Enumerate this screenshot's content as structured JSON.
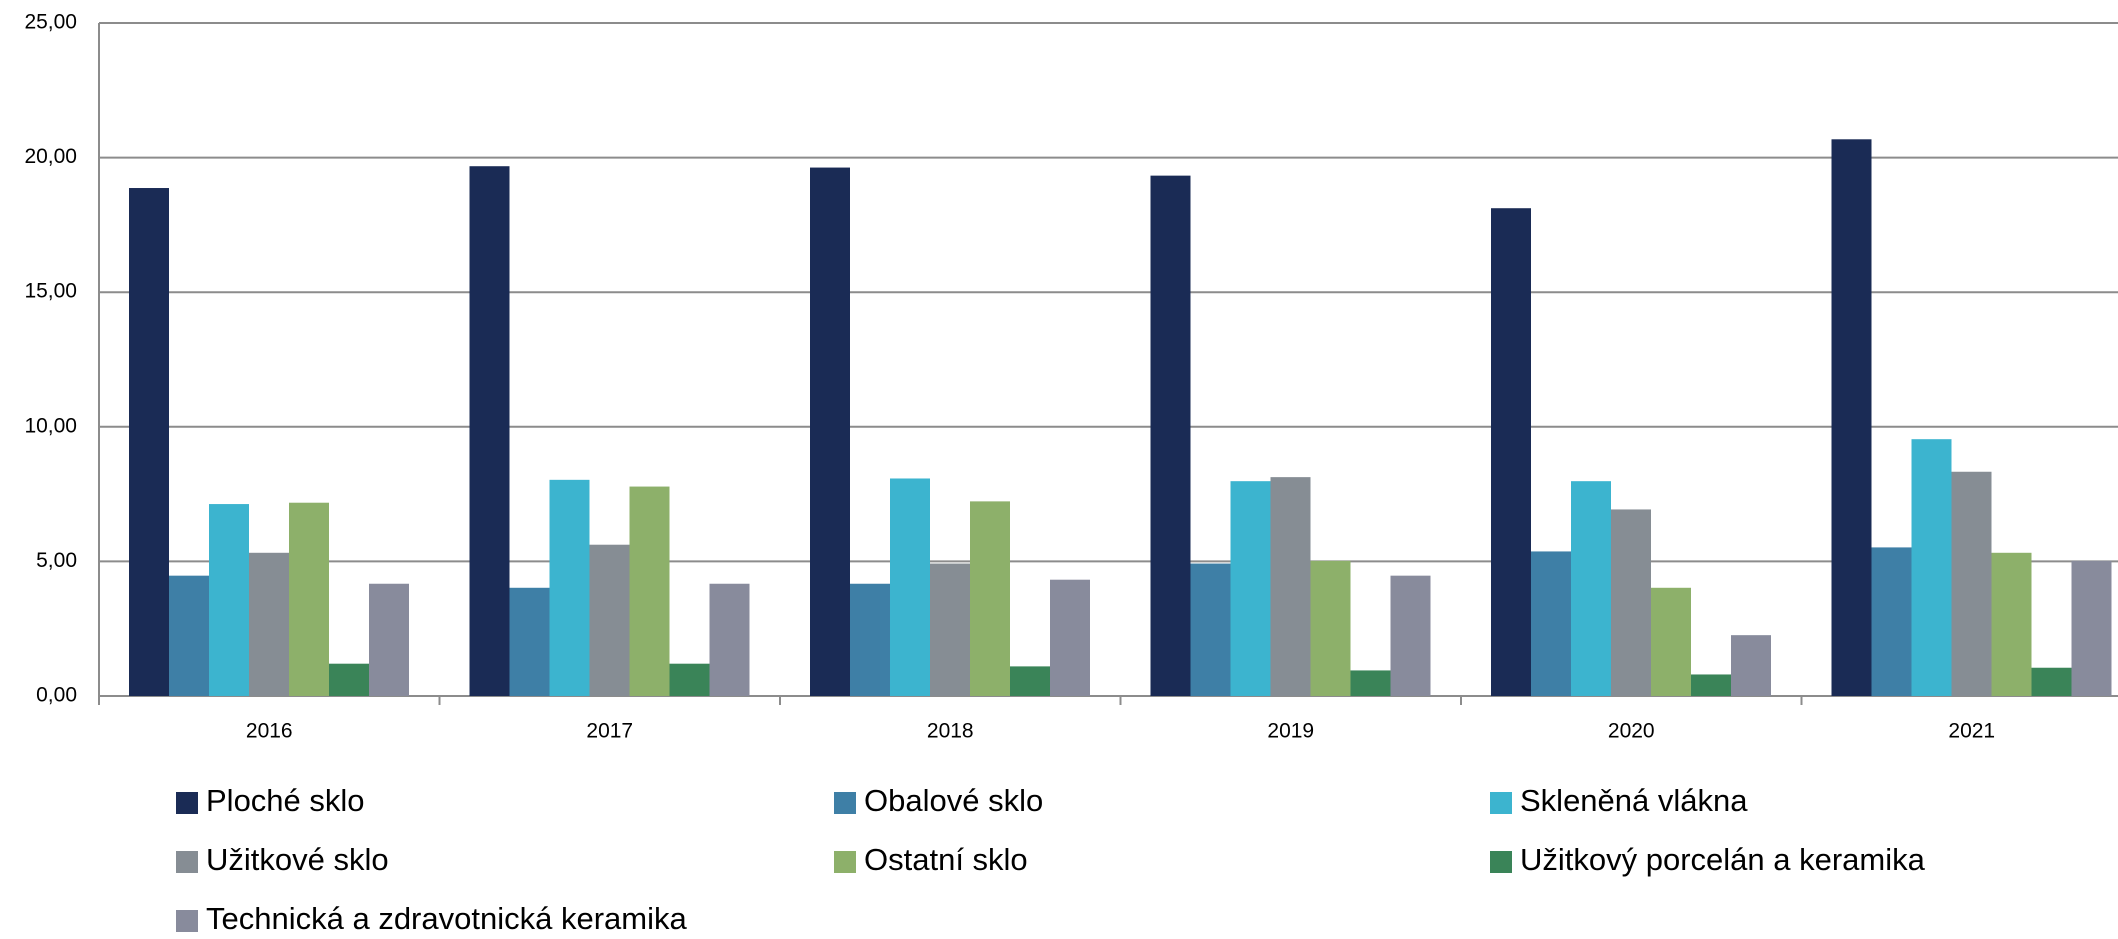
{
  "chart_data": {
    "type": "bar",
    "categories": [
      "2016",
      "2017",
      "2018",
      "2019",
      "2020",
      "2021"
    ],
    "series": [
      {
        "name": "Ploché sklo",
        "color": "#1a2b55",
        "values": [
          18.87,
          19.68,
          19.63,
          19.33,
          18.12,
          20.68
        ]
      },
      {
        "name": "Obalové sklo",
        "color": "#3e7fa6",
        "values": [
          4.47,
          4.02,
          4.17,
          4.92,
          5.37,
          5.52
        ]
      },
      {
        "name": "Skleněná vlákna",
        "color": "#3cb4cf",
        "values": [
          7.13,
          8.03,
          8.08,
          7.98,
          7.98,
          9.54
        ]
      },
      {
        "name": "Užitkové sklo",
        "color": "#868d94",
        "values": [
          5.32,
          5.62,
          4.92,
          8.13,
          6.93,
          8.33
        ]
      },
      {
        "name": "Ostatní sklo",
        "color": "#8db06a",
        "values": [
          7.18,
          7.78,
          7.23,
          5.02,
          4.02,
          5.32
        ]
      },
      {
        "name": "Užitkový porcelán a keramika",
        "color": "#3a8458",
        "values": [
          1.2,
          1.2,
          1.1,
          0.95,
          0.8,
          1.05
        ]
      },
      {
        "name": "Technická a zdravotnická keramika",
        "color": "#888b9c",
        "values": [
          4.17,
          4.17,
          4.32,
          4.47,
          2.26,
          5.02
        ]
      }
    ],
    "ylim": [
      0,
      25
    ],
    "yticks": [
      {
        "value": 0,
        "label": "0,00"
      },
      {
        "value": 5,
        "label": "5,00"
      },
      {
        "value": 10,
        "label": "10,00"
      },
      {
        "value": 15,
        "label": "15,00"
      },
      {
        "value": 20,
        "label": "20,00"
      },
      {
        "value": 25,
        "label": "25,00"
      }
    ],
    "grid": true,
    "legend": "bottom"
  }
}
